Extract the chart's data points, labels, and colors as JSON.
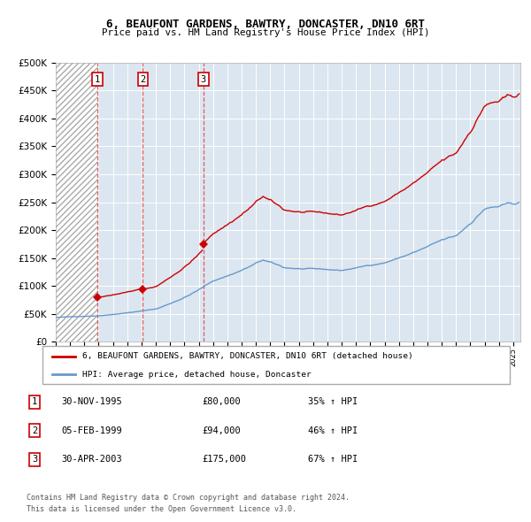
{
  "title1": "6, BEAUFONT GARDENS, BAWTRY, DONCASTER, DN10 6RT",
  "title2": "Price paid vs. HM Land Registry's House Price Index (HPI)",
  "sale_dates_decimal": [
    1995.916,
    1999.09,
    2003.33
  ],
  "sale_prices": [
    80000,
    94000,
    175000
  ],
  "sale_labels": [
    "1",
    "2",
    "3"
  ],
  "legend_line1": "6, BEAUFONT GARDENS, BAWTRY, DONCASTER, DN10 6RT (detached house)",
  "legend_line2": "HPI: Average price, detached house, Doncaster",
  "table_rows": [
    [
      "1",
      "30-NOV-1995",
      "£80,000",
      "35% ↑ HPI"
    ],
    [
      "2",
      "05-FEB-1999",
      "£94,000",
      "46% ↑ HPI"
    ],
    [
      "3",
      "30-APR-2003",
      "£175,000",
      "67% ↑ HPI"
    ]
  ],
  "footnote1": "Contains HM Land Registry data © Crown copyright and database right 2024.",
  "footnote2": "This data is licensed under the Open Government Licence v3.0.",
  "property_color": "#cc0000",
  "hpi_color": "#6699cc",
  "dashed_color": "#dd4444",
  "plot_bg_color": "#dce6f0",
  "ylim": [
    0,
    500000
  ],
  "xlim_start": 1993.0,
  "xlim_end": 2025.5
}
